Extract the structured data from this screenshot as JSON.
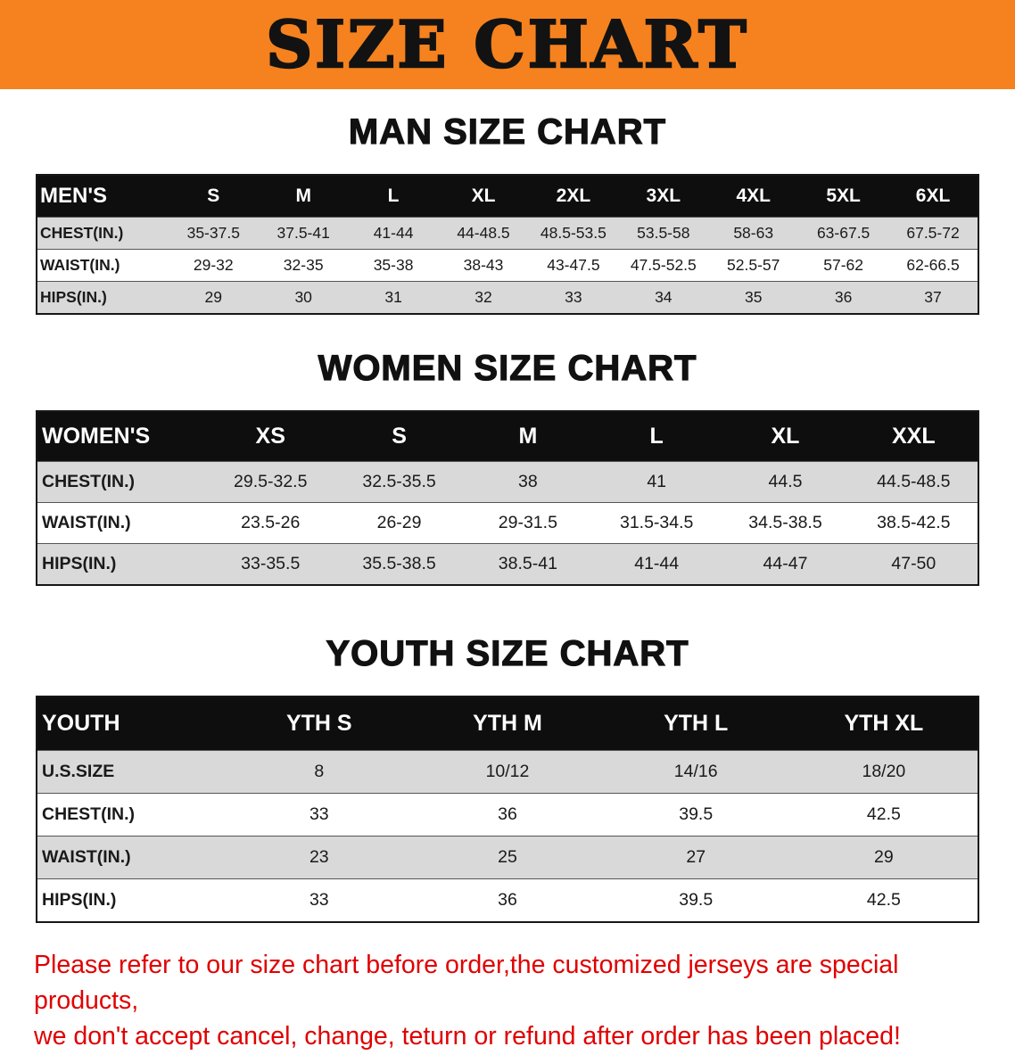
{
  "banner": {
    "title": "SIZE CHART",
    "background_color": "#F5821F",
    "text_color": "#121212"
  },
  "sections": [
    {
      "id": "men",
      "heading": "MAN SIZE CHART",
      "table": {
        "header": [
          "MEN'S",
          "S",
          "M",
          "L",
          "XL",
          "2XL",
          "3XL",
          "4XL",
          "5XL",
          "6XL"
        ],
        "rows": [
          [
            "CHEST(IN.)",
            "35-37.5",
            "37.5-41",
            "41-44",
            "44-48.5",
            "48.5-53.5",
            "53.5-58",
            "58-63",
            "63-67.5",
            "67.5-72"
          ],
          [
            "WAIST(IN.)",
            "29-32",
            "32-35",
            "35-38",
            "38-43",
            "43-47.5",
            "47.5-52.5",
            "52.5-57",
            "57-62",
            "62-66.5"
          ],
          [
            "HIPS(IN.)",
            "29",
            "30",
            "31",
            "32",
            "33",
            "34",
            "35",
            "36",
            "37"
          ]
        ]
      }
    },
    {
      "id": "women",
      "heading": "WOMEN SIZE CHART",
      "table": {
        "header": [
          "WOMEN'S",
          "XS",
          "S",
          "M",
          "L",
          "XL",
          "XXL"
        ],
        "rows": [
          [
            "CHEST(IN.)",
            "29.5-32.5",
            "32.5-35.5",
            "38",
            "41",
            "44.5",
            "44.5-48.5"
          ],
          [
            "WAIST(IN.)",
            "23.5-26",
            "26-29",
            "29-31.5",
            "31.5-34.5",
            "34.5-38.5",
            "38.5-42.5"
          ],
          [
            "HIPS(IN.)",
            "33-35.5",
            "35.5-38.5",
            "38.5-41",
            "41-44",
            "44-47",
            "47-50"
          ]
        ]
      }
    },
    {
      "id": "youth",
      "heading": "YOUTH SIZE CHART",
      "table": {
        "header": [
          "YOUTH",
          "YTH S",
          "YTH M",
          "YTH L",
          "YTH XL"
        ],
        "rows": [
          [
            "U.S.SIZE",
            "8",
            "10/12",
            "14/16",
            "18/20"
          ],
          [
            "CHEST(IN.)",
            "33",
            "36",
            "39.5",
            "42.5"
          ],
          [
            "WAIST(IN.)",
            "23",
            "25",
            "27",
            "29"
          ],
          [
            "HIPS(IN.)",
            "33",
            "36",
            "39.5",
            "42.5"
          ]
        ]
      }
    }
  ],
  "footnote": {
    "color": "#E00000",
    "lines": [
      "Please refer to our size chart before order,the customized jerseys are special products,",
      "we don't accept cancel, change, teturn or refund after order has been placed!"
    ]
  }
}
